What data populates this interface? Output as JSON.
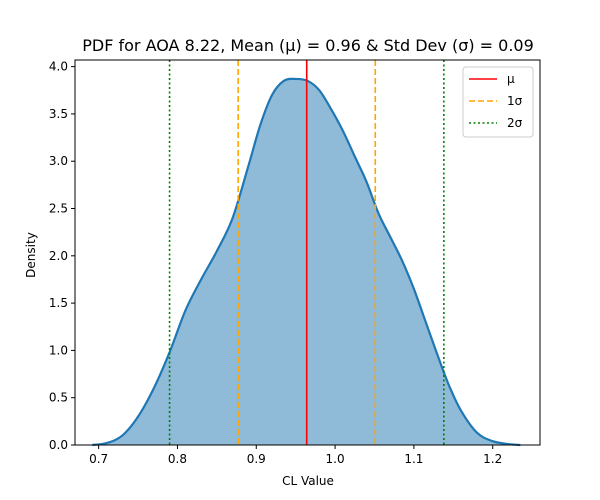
{
  "chart_data": {
    "type": "area",
    "title": "PDF for AOA 8.22, Mean (μ) = 0.96 & Std Dev (σ) = 0.09",
    "xlabel": "CL Value",
    "ylabel": "Density",
    "xlim": [
      0.67,
      1.26
    ],
    "ylim": [
      0,
      4.07
    ],
    "xticks": [
      0.7,
      0.8,
      0.9,
      1.0,
      1.1,
      1.2
    ],
    "xtick_labels": [
      "0.7",
      "0.8",
      "0.9",
      "1.0",
      "1.1",
      "1.2"
    ],
    "yticks": [
      0.0,
      0.5,
      1.0,
      1.5,
      2.0,
      2.5,
      3.0,
      3.5,
      4.0
    ],
    "ytick_labels": [
      "0.0",
      "0.5",
      "1.0",
      "1.5",
      "2.0",
      "2.5",
      "3.0",
      "3.5",
      "4.0"
    ],
    "grid": false,
    "legend_position": "top-right",
    "series": [
      {
        "x": [
          0.692,
          0.71,
          0.73,
          0.75,
          0.77,
          0.79,
          0.81,
          0.83,
          0.85,
          0.87,
          0.89,
          0.905,
          0.92,
          0.935,
          0.95,
          0.965,
          0.98,
          0.995,
          1.01,
          1.025,
          1.04,
          1.055,
          1.07,
          1.085,
          1.1,
          1.115,
          1.13,
          1.145,
          1.16,
          1.18,
          1.2,
          1.22,
          1.235
        ],
        "y": [
          0.0,
          0.02,
          0.1,
          0.3,
          0.6,
          0.98,
          1.42,
          1.75,
          2.05,
          2.4,
          2.95,
          3.38,
          3.7,
          3.85,
          3.87,
          3.85,
          3.75,
          3.55,
          3.32,
          3.05,
          2.78,
          2.45,
          2.2,
          1.95,
          1.65,
          1.3,
          0.95,
          0.62,
          0.36,
          0.13,
          0.04,
          0.01,
          0.0
        ],
        "color": "#1f77b4",
        "fill_color": "#1f77b4",
        "fill_alpha": 0.5
      }
    ],
    "reference_lines": [
      {
        "name": "μ",
        "x": [
          0.964
        ],
        "color": "#ff0000",
        "style": "solid"
      },
      {
        "name": "1σ",
        "x": [
          0.877,
          1.051
        ],
        "color": "#ffa500",
        "style": "dashed"
      },
      {
        "name": "2σ",
        "x": [
          0.79,
          1.138
        ],
        "color": "#008000",
        "style": "dotted"
      }
    ]
  }
}
